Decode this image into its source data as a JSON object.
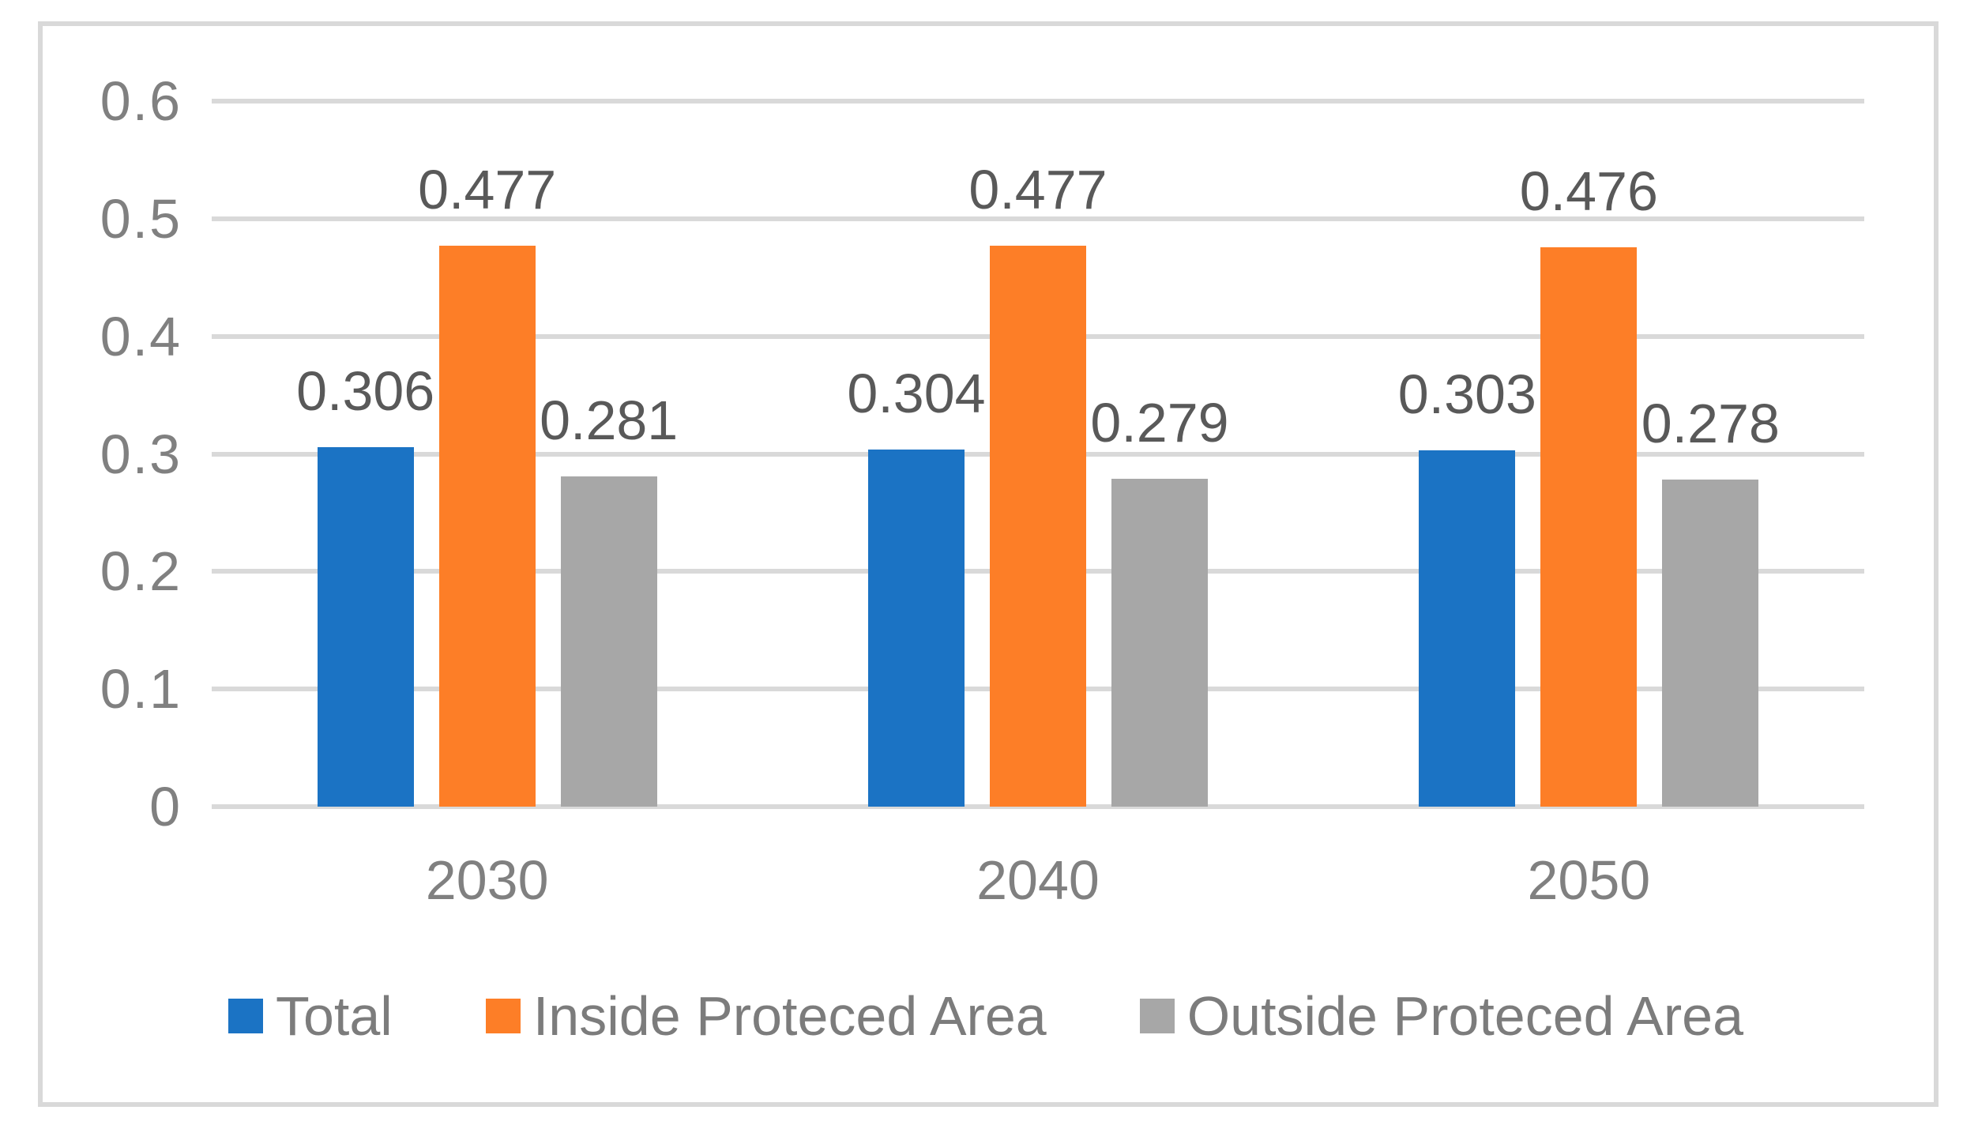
{
  "chart_data": {
    "type": "bar",
    "title": "",
    "xlabel": "",
    "ylabel": "",
    "categories": [
      "2030",
      "2040",
      "2050"
    ],
    "series": [
      {
        "name": "Total",
        "color": "#1B73C4",
        "values": [
          0.306,
          0.304,
          0.303
        ],
        "labels": [
          "0.306",
          "0.304",
          "0.303"
        ]
      },
      {
        "name": "Inside Proteced Area",
        "color": "#FD7E27",
        "values": [
          0.477,
          0.477,
          0.476
        ],
        "labels": [
          "0.477",
          "0.477",
          "0.476"
        ]
      },
      {
        "name": "Outside Proteced Area",
        "color": "#A7A7A7",
        "values": [
          0.281,
          0.279,
          0.278
        ],
        "labels": [
          "0.281",
          "0.279",
          "0.278"
        ]
      }
    ],
    "ylim": [
      0,
      0.6
    ],
    "yticks": [
      "0",
      "0.1",
      "0.2",
      "0.3",
      "0.4",
      "0.5",
      "0.6"
    ],
    "grid": true,
    "legend_position": "bottom"
  },
  "colors": {
    "gridline": "#D9D9D9",
    "frame_border": "#D9D9D9",
    "axis_text": "#808080",
    "data_label_text": "#595959",
    "legend_text": "#7C7C7C",
    "background": "#ffffff"
  }
}
